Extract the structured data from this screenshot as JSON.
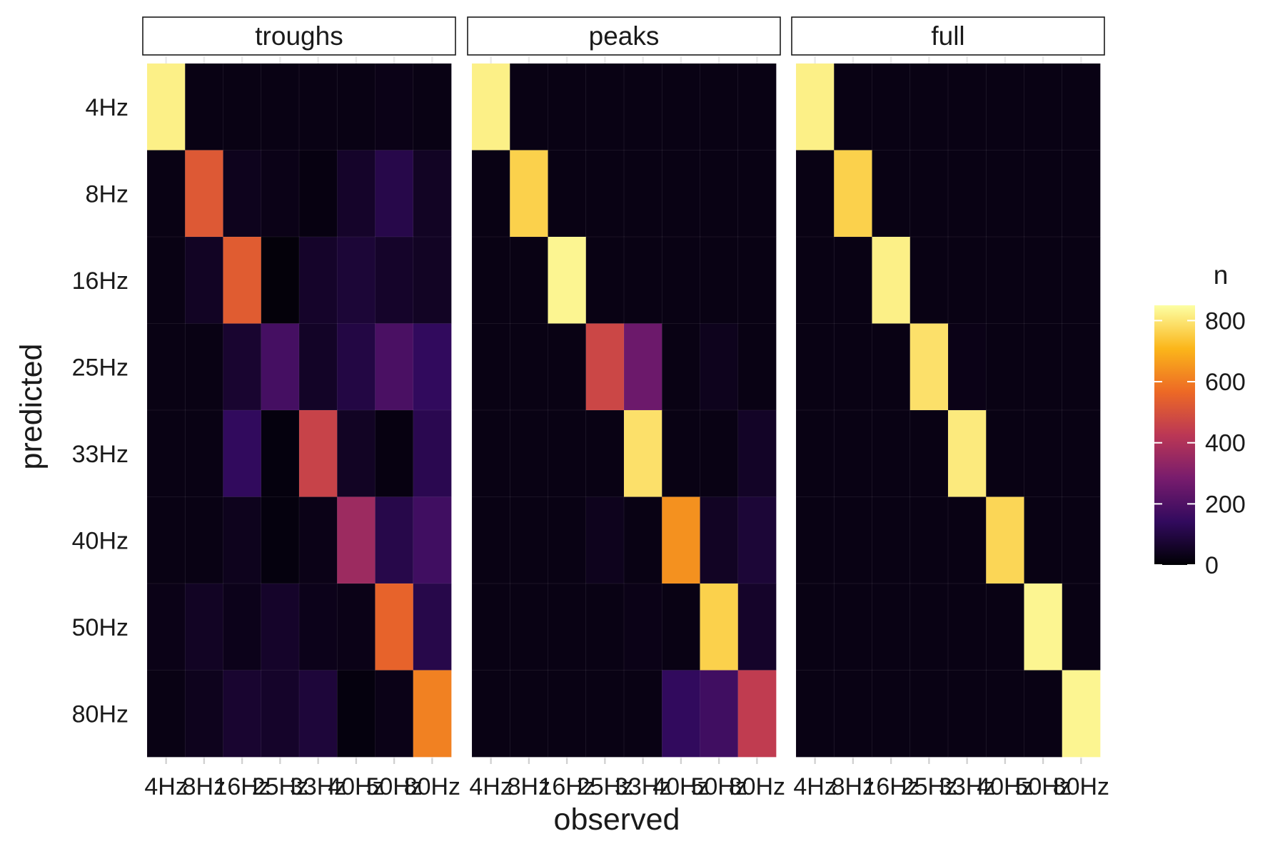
{
  "chart_data": {
    "type": "heatmap",
    "xlabel": "observed",
    "ylabel": "predicted",
    "categories": [
      "4Hz",
      "8Hz",
      "16Hz",
      "25Hz",
      "33Hz",
      "40Hz",
      "50Hz",
      "80Hz"
    ],
    "panels": [
      {
        "title": "troughs",
        "values": [
          [
            820,
            25,
            25,
            25,
            25,
            25,
            30,
            25
          ],
          [
            25,
            520,
            40,
            30,
            20,
            60,
            110,
            50
          ],
          [
            25,
            50,
            530,
            10,
            60,
            80,
            60,
            50
          ],
          [
            25,
            25,
            70,
            180,
            55,
            100,
            190,
            140
          ],
          [
            25,
            25,
            140,
            15,
            460,
            50,
            20,
            120
          ],
          [
            25,
            25,
            40,
            15,
            30,
            360,
            110,
            170
          ],
          [
            30,
            50,
            35,
            60,
            35,
            30,
            550,
            110
          ],
          [
            25,
            40,
            70,
            60,
            85,
            15,
            30,
            610
          ]
        ]
      },
      {
        "title": "peaks",
        "values": [
          [
            820,
            25,
            25,
            25,
            25,
            25,
            25,
            25
          ],
          [
            25,
            760,
            25,
            25,
            25,
            25,
            25,
            25
          ],
          [
            25,
            25,
            830,
            25,
            25,
            25,
            25,
            25
          ],
          [
            25,
            25,
            25,
            470,
            260,
            25,
            40,
            25
          ],
          [
            25,
            25,
            25,
            25,
            790,
            25,
            25,
            55
          ],
          [
            25,
            25,
            25,
            40,
            25,
            640,
            50,
            80
          ],
          [
            25,
            25,
            25,
            25,
            30,
            25,
            760,
            60
          ],
          [
            25,
            25,
            25,
            25,
            25,
            140,
            170,
            440
          ]
        ]
      },
      {
        "title": "full",
        "values": [
          [
            820,
            25,
            25,
            25,
            25,
            25,
            25,
            25
          ],
          [
            25,
            760,
            25,
            25,
            25,
            25,
            25,
            25
          ],
          [
            25,
            25,
            820,
            25,
            25,
            25,
            25,
            25
          ],
          [
            25,
            25,
            25,
            790,
            30,
            25,
            25,
            25
          ],
          [
            25,
            25,
            25,
            25,
            810,
            25,
            25,
            25
          ],
          [
            25,
            25,
            25,
            25,
            25,
            770,
            25,
            25
          ],
          [
            25,
            25,
            25,
            25,
            25,
            25,
            830,
            25
          ],
          [
            25,
            25,
            25,
            25,
            25,
            25,
            25,
            830
          ]
        ]
      }
    ],
    "color_scale": {
      "title": "n",
      "range": [
        0,
        850
      ],
      "ticks": [
        0,
        200,
        400,
        600,
        800
      ],
      "colors": [
        "#000004",
        "#320a5e",
        "#781c6d",
        "#bb3755",
        "#ed6925",
        "#fbb61a",
        "#fcffa4"
      ]
    },
    "grid": true,
    "legend_position": "right"
  }
}
